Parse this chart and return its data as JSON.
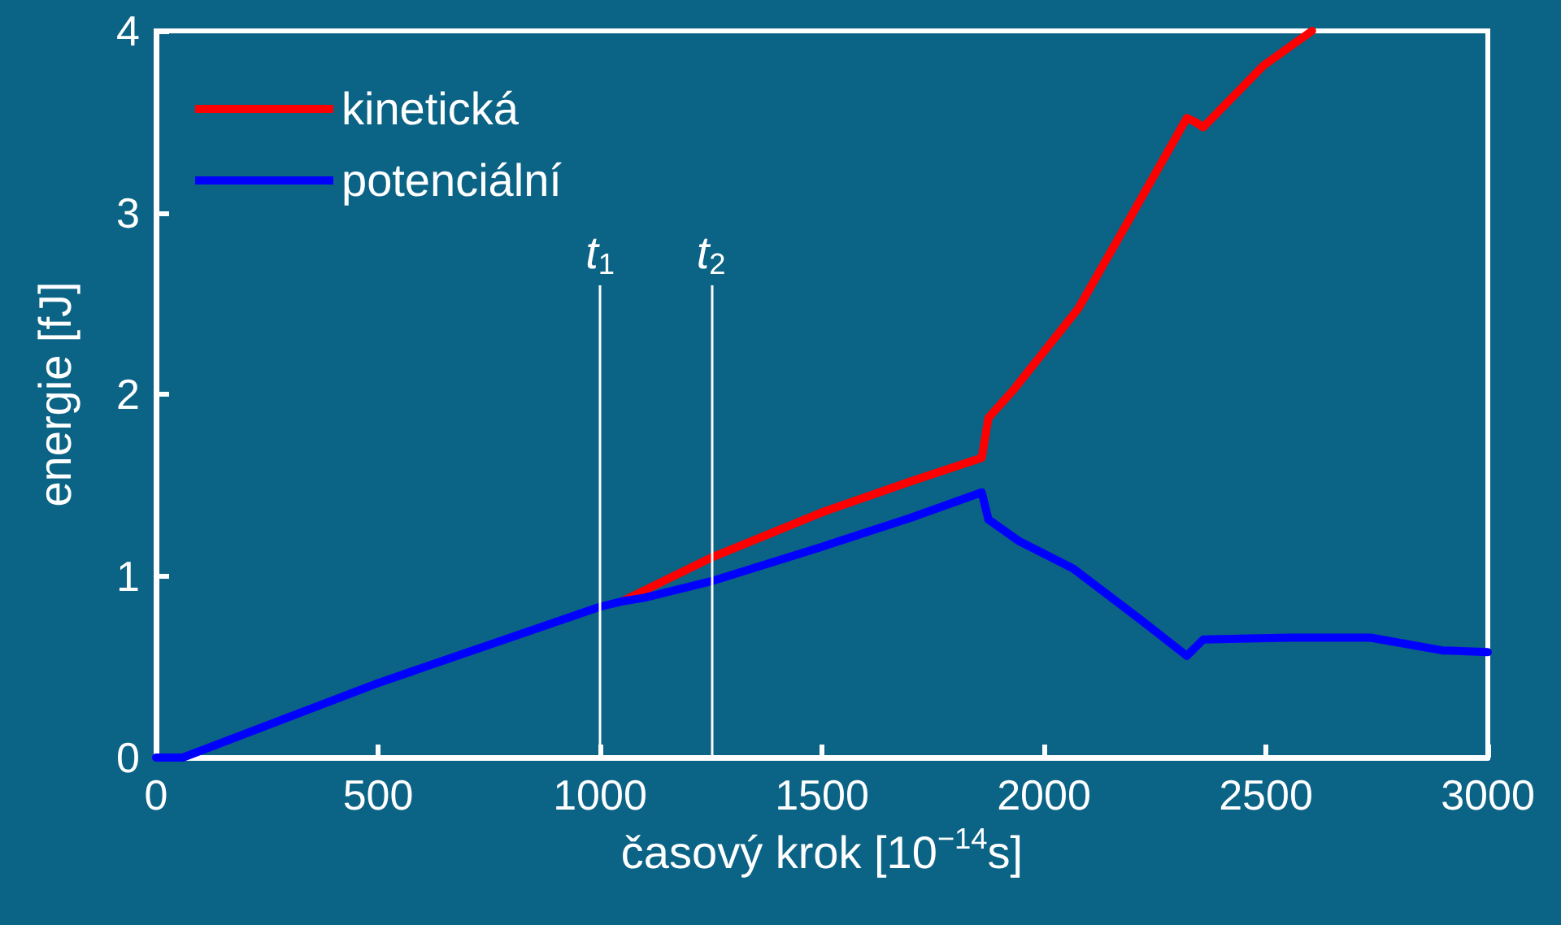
{
  "chart_data": {
    "type": "line",
    "xlabel": "časový krok [10$^{−14}$s]",
    "ylabel": "energie [fJ]",
    "xlim": [
      0,
      3000
    ],
    "xticks": [
      0,
      500,
      1000,
      1500,
      2000,
      2500,
      3000
    ],
    "ylim": [
      0,
      4
    ],
    "yticks": [
      0,
      1,
      2,
      3,
      4
    ],
    "grid": false,
    "legend": "top left",
    "marker": "none",
    "line_style": "solid",
    "ref_lines": [
      {
        "axis": "x",
        "value": 1000,
        "label": "t$_{1}$",
        "color": "#ffffff"
      },
      {
        "axis": "x",
        "value": 1250,
        "label": "t$_{2}$",
        "color": "#ffffff"
      }
    ],
    "series": [
      {
        "name": "kinetická",
        "color": "#ff0000",
        "x": [
          1050,
          1250,
          1500,
          1700,
          1860,
          1875,
          1930,
          2077,
          2187,
          2322,
          2340,
          2359,
          2495,
          2604
        ],
        "values": [
          0.86,
          1.1,
          1.35,
          1.52,
          1.65,
          1.87,
          2.02,
          2.47,
          2.94,
          3.52,
          3.5,
          3.47,
          3.81,
          4.0
        ]
      },
      {
        "name": "potenciální",
        "color": "#0000ff",
        "x": [
          0,
          60,
          500,
          1000,
          1050,
          1100,
          1250,
          1500,
          1700,
          1860,
          1875,
          1945,
          2066,
          2212,
          2322,
          2359,
          2553,
          2736,
          2897,
          3000
        ],
        "values": [
          0,
          0,
          0.41,
          0.83,
          0.86,
          0.88,
          0.97,
          1.16,
          1.32,
          1.46,
          1.31,
          1.19,
          1.04,
          0.77,
          0.56,
          0.65,
          0.66,
          0.66,
          0.59,
          0.58
        ]
      }
    ]
  }
}
